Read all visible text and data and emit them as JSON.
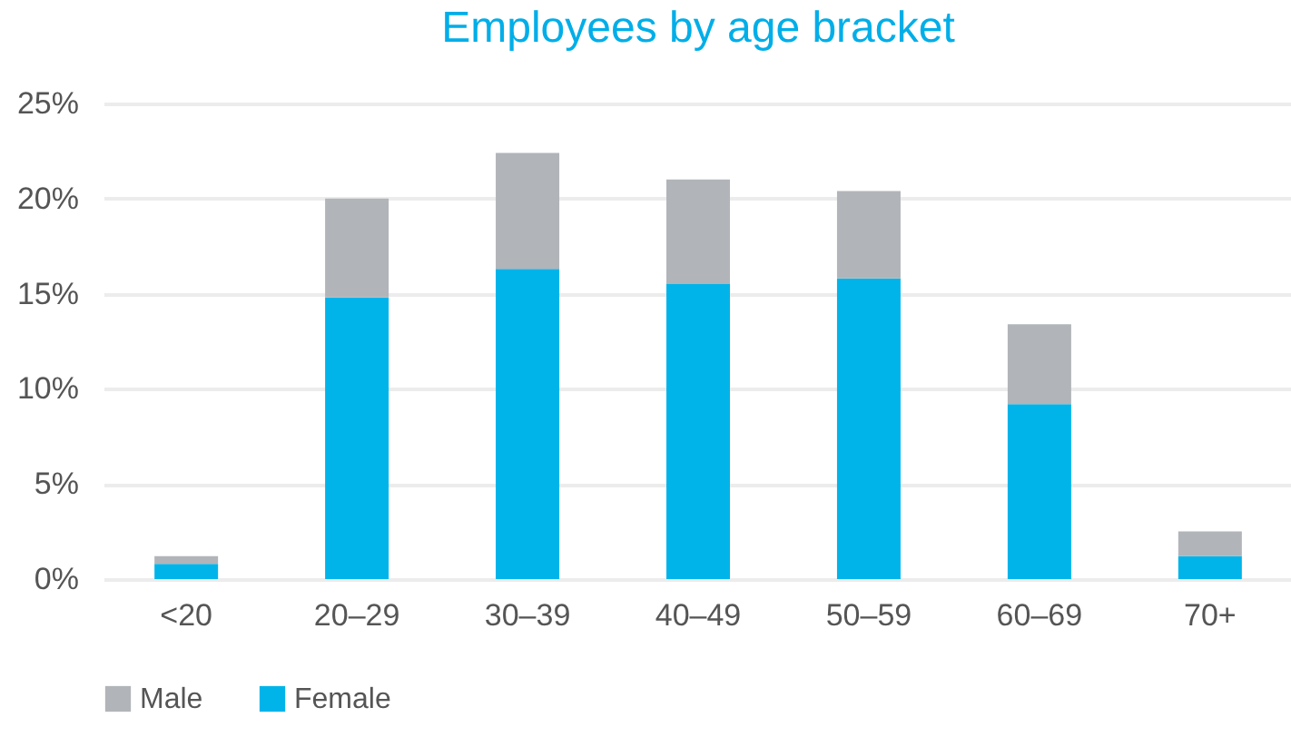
{
  "chart_data": {
    "type": "bar",
    "title": "Employees by age bracket",
    "stacked": true,
    "categories": [
      "<20",
      "20–29",
      "30–39",
      "40–49",
      "50–59",
      "60–69",
      "70+"
    ],
    "series": [
      {
        "name": "Female",
        "color": "#00b4ea",
        "values": [
          0.8,
          14.8,
          16.3,
          15.5,
          15.8,
          9.2,
          1.2
        ]
      },
      {
        "name": "Male",
        "color": "#b1b4b8",
        "values": [
          0.4,
          5.2,
          6.1,
          5.5,
          4.6,
          4.2,
          1.3
        ]
      }
    ],
    "ylim": [
      0,
      25
    ],
    "yticks": [
      {
        "value": 0,
        "label": "0%"
      },
      {
        "value": 5,
        "label": "5%"
      },
      {
        "value": 10,
        "label": "10%"
      },
      {
        "value": 15,
        "label": "15%"
      },
      {
        "value": 20,
        "label": "20%"
      },
      {
        "value": 25,
        "label": "25%"
      }
    ],
    "grid": "y",
    "legend": "bottom"
  }
}
